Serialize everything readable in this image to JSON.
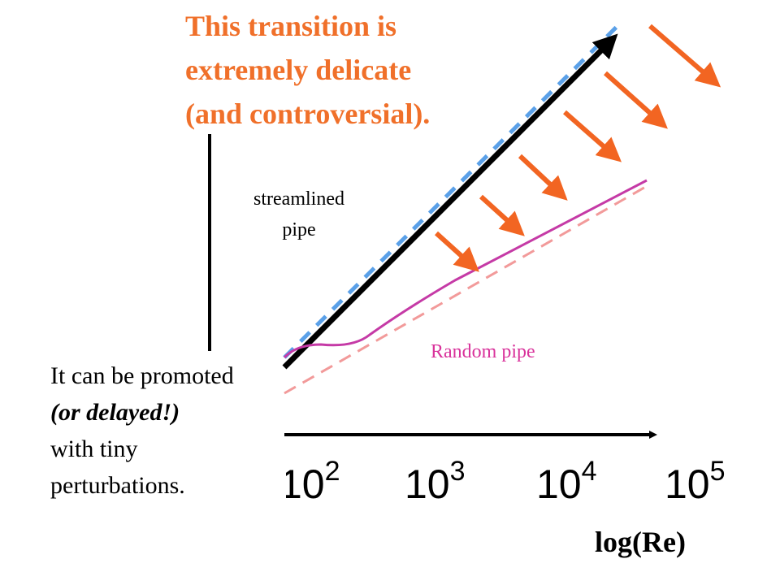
{
  "title_lines": [
    "This transition is",
    "extremely delicate",
    "(and controversial)."
  ],
  "labels": {
    "streamlined_line1": "streamlined",
    "streamlined_line2": "pipe",
    "random": "Random pipe"
  },
  "note_lines": [
    "It can be promoted",
    "(or delayed!)",
    "with tiny",
    "perturbations."
  ],
  "x_axis": {
    "title": "log(Re)",
    "ticks": [
      {
        "base": "10",
        "exp": "2"
      },
      {
        "base": "10",
        "exp": "3"
      },
      {
        "base": "10",
        "exp": "4"
      },
      {
        "base": "10",
        "exp": "5"
      }
    ]
  },
  "colors": {
    "title": "#f0702a",
    "arrows": "#f26522",
    "random_curve": "#c53aa6",
    "random_dashed": "#f29a9a",
    "streamlined_dashed": "#5aa0e8",
    "random_label": "#d9329b",
    "axes": "#000000"
  }
}
